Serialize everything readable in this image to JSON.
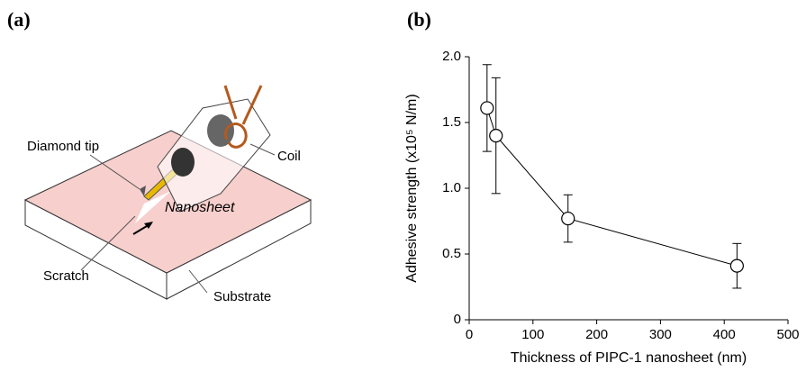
{
  "panel_labels": [
    "(a)",
    "(b)"
  ],
  "diagram": {
    "labels": [
      "Diamond tip",
      "Coil",
      "Nanosheet",
      "Scratch",
      "Substrate"
    ]
  },
  "chart_data": {
    "type": "scatter",
    "x_label": "Thickness of PIPC-1 nanosheet (nm)",
    "y_label": "Adhesive strength (x10⁵ N/m)",
    "x": [
      28,
      42,
      155,
      420
    ],
    "values": [
      1.61,
      1.4,
      0.77,
      0.41
    ],
    "errors": [
      0.33,
      0.44,
      0.18,
      0.17
    ],
    "color": "#000000",
    "xlim": [
      0,
      500
    ],
    "xticks": [
      0,
      100,
      200,
      300,
      400,
      500
    ],
    "ylim": [
      0,
      2
    ],
    "yticks": [
      0,
      0.5,
      {
        "value": 1,
        "label": "1.0"
      },
      1.5,
      {
        "value": 2,
        "label": "2.0"
      }
    ]
  }
}
